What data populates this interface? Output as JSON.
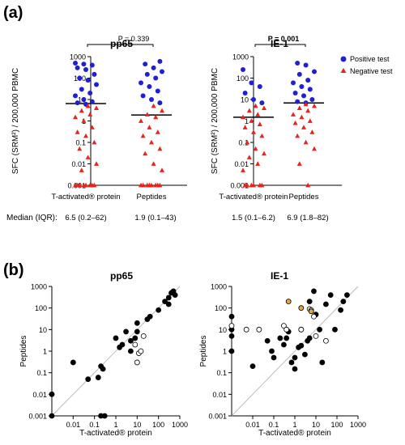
{
  "panel_labels": {
    "a": "(a)",
    "b": "(b)"
  },
  "median_label": "Median (IQR):",
  "colors": {
    "positive": "#1f1fd6",
    "negative": "#e8221c",
    "median_line": "#000000",
    "diagonal": "#bbbbbb",
    "axis": "#000000",
    "orange_fill": "#e8a24a"
  },
  "chart_data": [
    {
      "id": "a-pp65",
      "type": "scatter",
      "title": "pp65",
      "ylabel": "SFC (SRM²) / 200,000 PBMC",
      "yscale": "log",
      "ylim": [
        0.001,
        1000
      ],
      "ytick_labels": [
        "0.001",
        "0.01",
        "0.1",
        "1",
        "10",
        "100",
        "1000"
      ],
      "categories": [
        "T-activated® protein",
        "Peptides"
      ],
      "pvalue_text": "P = 0.339",
      "pvalue_bold": false,
      "medians": [
        6.5,
        1.9
      ],
      "median_text": [
        "6.5 (0.2–62)",
        "1.9 (0.1–43)"
      ],
      "legend": null,
      "series": [
        {
          "name": "Positive test",
          "points": [
            [
              0,
              500
            ],
            [
              0,
              450
            ],
            [
              0,
              400
            ],
            [
              0,
              300
            ],
            [
              0,
              250
            ],
            [
              0,
              150
            ],
            [
              0,
              100
            ],
            [
              0,
              80
            ],
            [
              0,
              50
            ],
            [
              0,
              30
            ],
            [
              0,
              20
            ],
            [
              0,
              15
            ],
            [
              0,
              10
            ],
            [
              0,
              8
            ],
            [
              0,
              7
            ],
            [
              0,
              6
            ],
            [
              1,
              600
            ],
            [
              1,
              450
            ],
            [
              1,
              300
            ],
            [
              1,
              200
            ],
            [
              1,
              150
            ],
            [
              1,
              100
            ],
            [
              1,
              60
            ],
            [
              1,
              40
            ],
            [
              1,
              25
            ],
            [
              1,
              15
            ],
            [
              1,
              10
            ],
            [
              1,
              7
            ]
          ]
        },
        {
          "name": "Negative test",
          "points": [
            [
              0,
              5
            ],
            [
              0,
              4
            ],
            [
              0,
              3
            ],
            [
              0,
              2
            ],
            [
              0,
              1.5
            ],
            [
              0,
              1
            ],
            [
              0,
              0.5
            ],
            [
              0,
              0.3
            ],
            [
              0,
              0.2
            ],
            [
              0,
              0.1
            ],
            [
              0,
              0.05
            ],
            [
              0,
              0.02
            ],
            [
              0,
              0.01
            ],
            [
              0,
              0.005
            ],
            [
              0,
              0.001
            ],
            [
              0,
              0.001
            ],
            [
              0,
              0.001
            ],
            [
              0,
              0.001
            ],
            [
              0,
              0.001
            ],
            [
              0,
              0.001
            ],
            [
              0,
              0.001
            ],
            [
              0,
              0.001
            ],
            [
              1,
              5
            ],
            [
              1,
              3
            ],
            [
              1,
              2
            ],
            [
              1,
              1.5
            ],
            [
              1,
              1
            ],
            [
              1,
              0.5
            ],
            [
              1,
              0.3
            ],
            [
              1,
              0.2
            ],
            [
              1,
              0.1
            ],
            [
              1,
              0.05
            ],
            [
              1,
              0.03
            ],
            [
              1,
              0.01
            ],
            [
              1,
              0.005
            ],
            [
              1,
              0.001
            ],
            [
              1,
              0.001
            ],
            [
              1,
              0.001
            ],
            [
              1,
              0.001
            ],
            [
              1,
              0.001
            ],
            [
              1,
              0.001
            ],
            [
              1,
              0.001
            ],
            [
              1,
              0.001
            ]
          ]
        }
      ]
    },
    {
      "id": "a-ie1",
      "type": "scatter",
      "title": "IE-1",
      "ylabel": "SFC (SRM²) / 200,000 PBMC",
      "yscale": "log",
      "ylim": [
        0.001,
        1000
      ],
      "ytick_labels": [
        "0.001",
        "0.01",
        "0.1",
        "1",
        "10",
        "100",
        "1000"
      ],
      "categories": [
        "T-activated® protein",
        "Peptides"
      ],
      "pvalue_text": "P = 0.001",
      "pvalue_bold": true,
      "medians": [
        1.5,
        6.9
      ],
      "median_text": [
        "1.5 (0.1–6.2)",
        "6.9 (1.8–82)"
      ],
      "legend": [
        "Positive test",
        "Negative test"
      ],
      "series": [
        {
          "name": "Positive test",
          "points": [
            [
              0,
              250
            ],
            [
              0,
              60
            ],
            [
              0,
              40
            ],
            [
              0,
              20
            ],
            [
              0,
              10
            ],
            [
              0,
              7
            ],
            [
              1,
              500
            ],
            [
              1,
              400
            ],
            [
              1,
              200
            ],
            [
              1,
              150
            ],
            [
              1,
              80
            ],
            [
              1,
              60
            ],
            [
              1,
              40
            ],
            [
              1,
              30
            ],
            [
              1,
              20
            ],
            [
              1,
              15
            ],
            [
              1,
              10
            ],
            [
              1,
              8
            ],
            [
              1,
              7
            ]
          ]
        },
        {
          "name": "Negative test",
          "points": [
            [
              0,
              5
            ],
            [
              0,
              4
            ],
            [
              0,
              3
            ],
            [
              0,
              2
            ],
            [
              0,
              1.5
            ],
            [
              0,
              1
            ],
            [
              0,
              0.7
            ],
            [
              0,
              0.5
            ],
            [
              0,
              0.3
            ],
            [
              0,
              0.2
            ],
            [
              0,
              0.1
            ],
            [
              0,
              0.05
            ],
            [
              0,
              0.03
            ],
            [
              0,
              0.02
            ],
            [
              0,
              0.01
            ],
            [
              0,
              0.005
            ],
            [
              0,
              0.001
            ],
            [
              0,
              0.001
            ],
            [
              0,
              0.001
            ],
            [
              0,
              0.001
            ],
            [
              0,
              0.001
            ],
            [
              0,
              0.001
            ],
            [
              1,
              6
            ],
            [
              1,
              5
            ],
            [
              1,
              4
            ],
            [
              1,
              3
            ],
            [
              1,
              2
            ],
            [
              1,
              1.5
            ],
            [
              1,
              1
            ],
            [
              1,
              0.8
            ],
            [
              1,
              0.5
            ],
            [
              1,
              0.3
            ],
            [
              1,
              0.2
            ],
            [
              1,
              0.1
            ],
            [
              1,
              0.05
            ],
            [
              1,
              0.01
            ],
            [
              1,
              0.001
            ]
          ]
        }
      ]
    },
    {
      "id": "b-pp65",
      "type": "scatter",
      "title": "pp65",
      "xlabel": "T-activated® protein",
      "ylabel": "Peptides",
      "xscale": "log",
      "yscale": "log",
      "xlim": [
        0.001,
        1000
      ],
      "ylim": [
        0.001,
        1000
      ],
      "xtick_labels": [
        "0.01",
        "0.1",
        "1",
        "10",
        "100",
        "1000"
      ],
      "ytick_labels": [
        "0.001",
        "0.01",
        "0.1",
        "1",
        "10",
        "100",
        "1000"
      ],
      "diagonal": true,
      "series": [
        {
          "name": "filled",
          "fill": "black",
          "points": [
            [
              0.01,
              0.3
            ],
            [
              0.05,
              0.05
            ],
            [
              0.15,
              0.06
            ],
            [
              0.2,
              0.2
            ],
            [
              0.25,
              0.15
            ],
            [
              0.3,
              0.001
            ],
            [
              0.2,
              0.001
            ],
            [
              0.001,
              0.001
            ],
            [
              0.001,
              0.01
            ],
            [
              1,
              4
            ],
            [
              1.5,
              1.5
            ],
            [
              2,
              2
            ],
            [
              3,
              8
            ],
            [
              5,
              3
            ],
            [
              5,
              1
            ],
            [
              8,
              4
            ],
            [
              10,
              20
            ],
            [
              10,
              8
            ],
            [
              30,
              30
            ],
            [
              40,
              40
            ],
            [
              100,
              80
            ],
            [
              200,
              200
            ],
            [
              300,
              150
            ],
            [
              300,
              300
            ],
            [
              400,
              500
            ],
            [
              500,
              600
            ],
            [
              600,
              400
            ]
          ]
        },
        {
          "name": "open",
          "fill": "none",
          "points": [
            [
              10,
              0.3
            ],
            [
              12,
              0.8
            ],
            [
              15,
              1
            ],
            [
              20,
              5
            ],
            [
              8,
              2
            ]
          ]
        }
      ]
    },
    {
      "id": "b-ie1",
      "type": "scatter",
      "title": "IE-1",
      "xlabel": "T-activated® protein",
      "ylabel": "Peptides",
      "xscale": "log",
      "yscale": "log",
      "xlim": [
        0.001,
        1000
      ],
      "ylim": [
        0.001,
        1000
      ],
      "xtick_labels": [
        "0.01",
        "0.1",
        "1",
        "10",
        "100",
        "1000"
      ],
      "ytick_labels": [
        "0.001",
        "0.01",
        "0.1",
        "1",
        "10",
        "100",
        "1000"
      ],
      "diagonal": true,
      "series": [
        {
          "name": "filled",
          "fill": "black",
          "points": [
            [
              0.001,
              40
            ],
            [
              0.001,
              10
            ],
            [
              0.001,
              5
            ],
            [
              0.001,
              1
            ],
            [
              0.01,
              0.2
            ],
            [
              0.05,
              3
            ],
            [
              0.08,
              1
            ],
            [
              0.1,
              0.5
            ],
            [
              0.2,
              4
            ],
            [
              0.3,
              2
            ],
            [
              0.4,
              4
            ],
            [
              0.5,
              8
            ],
            [
              0.7,
              0.3
            ],
            [
              1,
              0.15
            ],
            [
              1,
              0.5
            ],
            [
              1.5,
              1.5
            ],
            [
              2,
              1.8
            ],
            [
              2,
              10
            ],
            [
              3,
              0.7
            ],
            [
              4,
              3
            ],
            [
              5,
              200
            ],
            [
              5,
              4
            ],
            [
              8,
              600
            ],
            [
              10,
              50
            ],
            [
              15,
              10
            ],
            [
              20,
              0.3
            ],
            [
              30,
              150
            ],
            [
              50,
              400
            ],
            [
              80,
              10
            ],
            [
              150,
              80
            ],
            [
              200,
              200
            ],
            [
              300,
              400
            ]
          ]
        },
        {
          "name": "open",
          "fill": "none",
          "points": [
            [
              0.001,
              15
            ],
            [
              0.005,
              10
            ],
            [
              0.02,
              10
            ],
            [
              0.3,
              15
            ],
            [
              2,
              10
            ],
            [
              5,
              90
            ],
            [
              6,
              80
            ],
            [
              8,
              40
            ],
            [
              10,
              5
            ],
            [
              30,
              3
            ],
            [
              0.4,
              10
            ]
          ]
        },
        {
          "name": "orange",
          "fill": "#e8a24a",
          "points": [
            [
              0.5,
              200
            ],
            [
              2,
              100
            ],
            [
              6,
              70
            ]
          ]
        }
      ]
    }
  ]
}
